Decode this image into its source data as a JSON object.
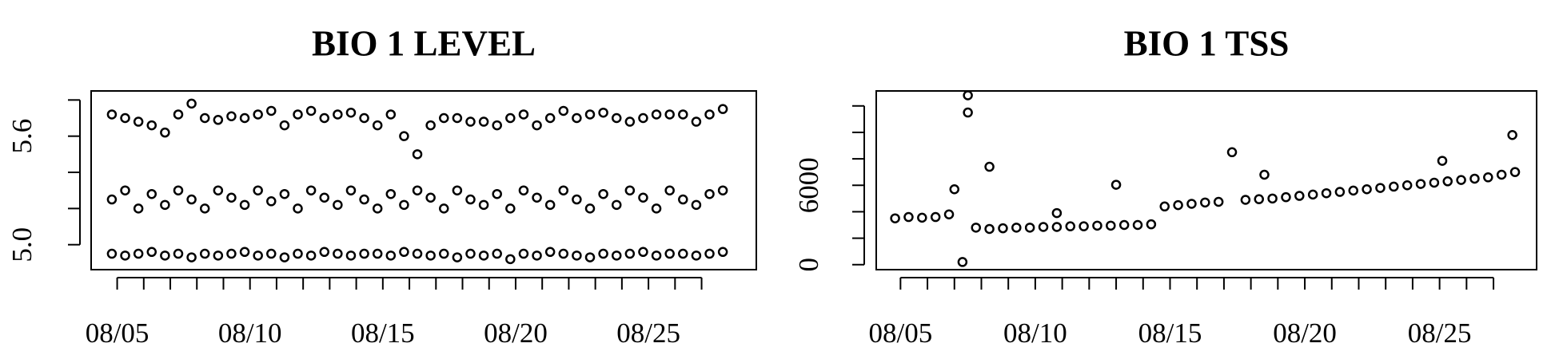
{
  "chart_data": [
    {
      "type": "scatter",
      "title": "BIO 1 LEVEL",
      "xlim": [
        4.02,
        29.06
      ],
      "xticks": [
        {
          "value": 5,
          "label": "08/05"
        },
        {
          "value": 10,
          "label": "08/10"
        },
        {
          "value": 15,
          "label": "08/15"
        },
        {
          "value": 20,
          "label": "08/20"
        },
        {
          "value": 25,
          "label": "08/25"
        }
      ],
      "xminor_ticks": [
        6,
        7,
        8,
        9,
        11,
        12,
        13,
        14,
        16,
        17,
        18,
        19,
        21,
        22,
        23,
        24,
        26,
        27
      ],
      "ylim": [
        4.862,
        5.85
      ],
      "yticks": [
        {
          "value": 5,
          "label": "5.0"
        },
        5.6
      ],
      "yminor_ticks": [
        5.2,
        5.4,
        5.8
      ],
      "x": [
        4.8,
        5.3,
        5.8,
        6.3,
        6.8,
        7.3,
        7.8,
        8.3,
        8.8,
        9.3,
        9.8,
        10.3,
        10.8,
        11.3,
        11.8,
        12.3,
        12.8,
        13.3,
        13.8,
        14.3,
        14.8,
        15.3,
        15.8,
        16.3,
        16.8,
        17.3,
        17.8,
        18.3,
        18.8,
        19.3,
        19.8,
        20.3,
        20.8,
        21.3,
        21.8,
        22.3,
        22.8,
        23.3,
        23.8,
        24.3,
        24.8,
        25.3,
        25.8,
        26.3,
        26.8,
        27.3,
        27.8
      ],
      "series": [
        {
          "color": "#000000",
          "values": [
            4.95,
            4.94,
            4.95,
            4.96,
            4.94,
            4.95,
            4.93,
            4.95,
            4.94,
            4.95,
            4.96,
            4.94,
            4.95,
            4.93,
            4.95,
            4.94,
            4.96,
            4.95,
            4.94,
            4.95,
            4.95,
            4.94,
            4.96,
            4.95,
            4.94,
            4.95,
            4.93,
            4.95,
            4.94,
            4.95,
            4.92,
            4.95,
            4.94,
            4.96,
            4.95,
            4.94,
            4.93,
            4.95,
            4.94,
            4.95,
            4.96,
            4.94,
            4.95,
            4.95,
            4.94,
            4.95,
            4.96
          ]
        },
        {
          "color": "#000000",
          "values": [
            5.25,
            5.3,
            5.2,
            5.28,
            5.22,
            5.3,
            5.25,
            5.2,
            5.3,
            5.26,
            5.22,
            5.3,
            5.24,
            5.28,
            5.2,
            5.3,
            5.26,
            5.22,
            5.3,
            5.25,
            5.2,
            5.28,
            5.22,
            5.3,
            5.26,
            5.2,
            5.3,
            5.25,
            5.22,
            5.28,
            5.2,
            5.3,
            5.26,
            5.22,
            5.3,
            5.25,
            5.2,
            5.28,
            5.22,
            5.3,
            5.26,
            5.2,
            5.3,
            5.25,
            5.22,
            5.28,
            5.3
          ]
        },
        {
          "color": "#000000",
          "values": [
            5.72,
            5.7,
            5.68,
            5.66,
            5.62,
            5.72,
            5.78,
            5.7,
            5.69,
            5.71,
            5.7,
            5.72,
            5.74,
            5.66,
            5.72,
            5.74,
            5.7,
            5.72,
            5.73,
            5.7,
            5.66,
            5.72,
            5.6,
            5.5,
            5.66,
            5.7,
            5.7,
            5.68,
            5.68,
            5.66,
            5.7,
            5.72,
            5.66,
            5.7,
            5.74,
            5.7,
            5.72,
            5.73,
            5.7,
            5.68,
            5.7,
            5.72,
            5.72,
            5.72,
            5.68,
            5.72,
            5.75
          ]
        }
      ]
    },
    {
      "type": "scatter",
      "title": "BIO 1 TSS",
      "xlim": [
        4.1,
        28.6
      ],
      "xticks": [
        {
          "value": 5,
          "label": "08/05"
        },
        {
          "value": 10,
          "label": "08/10"
        },
        {
          "value": 15,
          "label": "08/15"
        },
        {
          "value": 20,
          "label": "08/20"
        },
        {
          "value": 25,
          "label": "08/25"
        }
      ],
      "xminor_ticks": [
        6,
        7,
        8,
        9,
        11,
        12,
        13,
        14,
        16,
        17,
        18,
        19,
        21,
        22,
        23,
        24,
        26,
        27
      ],
      "ylim": [
        -377,
        13132
      ],
      "yticks": [
        0,
        6000
      ],
      "yminor_ticks": [
        2000,
        4000,
        8000,
        10000,
        12000
      ],
      "x": [
        4.8,
        5.3,
        5.8,
        6.3,
        6.8,
        7.3,
        7.8,
        8.3,
        8.8,
        9.3,
        9.8,
        10.3,
        10.8,
        11.3,
        11.8,
        12.3,
        12.8,
        13.3,
        13.8,
        14.3,
        14.8,
        15.3,
        15.8,
        16.3,
        16.8,
        17.3,
        17.8,
        18.3,
        18.8,
        19.3,
        19.8,
        20.3,
        20.8,
        21.3,
        21.8,
        22.3,
        22.8,
        23.3,
        23.8,
        24.3,
        24.8,
        25.3,
        25.8,
        26.3,
        26.8,
        27.3,
        27.8
      ],
      "series": [
        {
          "color": "#000000",
          "values": [
            3500,
            3600,
            3550,
            3600,
            3800,
            200,
            2800,
            2700,
            2750,
            2800,
            2800,
            2850,
            2850,
            2900,
            2900,
            2950,
            2950,
            3000,
            3000,
            3050,
            4400,
            4500,
            4600,
            4700,
            4750,
            8500,
            4900,
            4950,
            5000,
            5100,
            5200,
            5300,
            5400,
            5500,
            5600,
            5700,
            5800,
            5900,
            6000,
            6100,
            6200,
            6300,
            6400,
            6500,
            6600,
            6800,
            7000
          ]
        },
        {
          "color": "#000000",
          "x": [
            7.5,
            7.5,
            8.3,
            13.0,
            7.0,
            10.8,
            18.5,
            25.1,
            27.7
          ],
          "values": [
            12800,
            11500,
            7400,
            6040,
            5700,
            3900,
            6800,
            7850,
            9800
          ]
        }
      ]
    }
  ]
}
